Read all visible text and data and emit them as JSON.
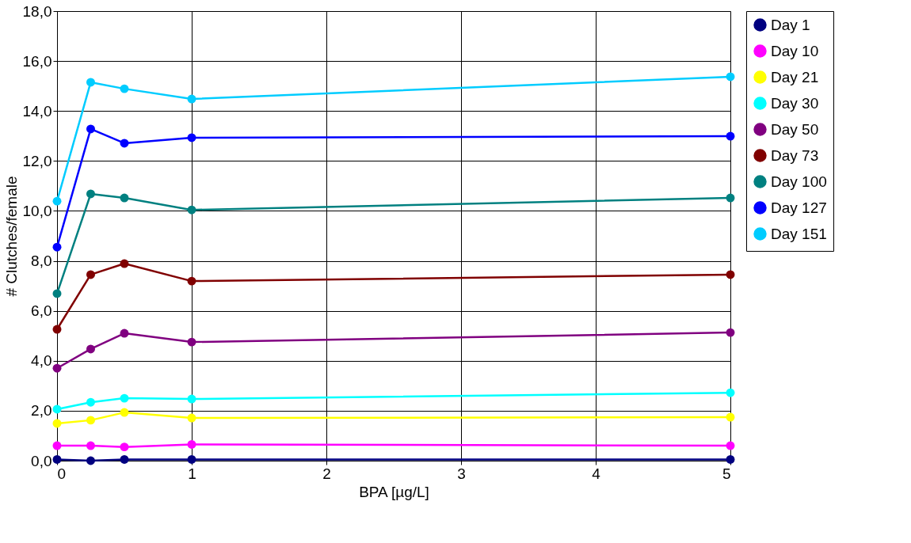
{
  "chart_data": {
    "type": "line",
    "xlabel": "BPA [µg/L]",
    "ylabel": "# Clutches/female",
    "x": [
      0,
      0.25,
      0.5,
      1,
      5
    ],
    "xlim": [
      0,
      5
    ],
    "xticks": [
      0,
      1,
      2,
      3,
      4,
      5
    ],
    "ylim": [
      0,
      18
    ],
    "yticks": [
      {
        "value": 0,
        "label": "0,0"
      },
      {
        "value": 2,
        "label": "2,0"
      },
      {
        "value": 4,
        "label": "4,0"
      },
      {
        "value": 6,
        "label": "6,0"
      },
      {
        "value": 8,
        "label": "8,0"
      },
      {
        "value": 10,
        "label": "10,0"
      },
      {
        "value": 12,
        "label": "12,0"
      },
      {
        "value": 14,
        "label": "14,0"
      },
      {
        "value": 16,
        "label": "16,0"
      },
      {
        "value": 18,
        "label": "18,0"
      }
    ],
    "grid": true,
    "legend": "right",
    "marker": "circle",
    "line_style": "solid",
    "series": [
      {
        "name": "Day 1",
        "color": "#000080",
        "values": [
          0.05,
          0.0,
          0.05,
          0.05,
          0.05
        ]
      },
      {
        "name": "Day 10",
        "color": "#ff00ff",
        "values": [
          0.6,
          0.6,
          0.55,
          0.65,
          0.6
        ]
      },
      {
        "name": "Day 21",
        "color": "#ffff00",
        "values": [
          1.49,
          1.62,
          1.93,
          1.71,
          1.74
        ]
      },
      {
        "name": "Day 30",
        "color": "#00ffff",
        "values": [
          2.06,
          2.34,
          2.5,
          2.47,
          2.72
        ]
      },
      {
        "name": "Day 50",
        "color": "#800080",
        "values": [
          3.7,
          4.47,
          5.1,
          4.75,
          5.13
        ]
      },
      {
        "name": "Day 73",
        "color": "#800000",
        "values": [
          5.26,
          7.45,
          7.89,
          7.19,
          7.45
        ]
      },
      {
        "name": "Day 100",
        "color": "#008080",
        "values": [
          6.69,
          10.68,
          10.52,
          10.04,
          10.52
        ]
      },
      {
        "name": "Day 127",
        "color": "#0000ff",
        "values": [
          8.55,
          13.28,
          12.71,
          12.93,
          12.99
        ]
      },
      {
        "name": "Day 151",
        "color": "#00ccff",
        "values": [
          10.39,
          15.15,
          14.89,
          14.48,
          15.37
        ]
      }
    ]
  }
}
